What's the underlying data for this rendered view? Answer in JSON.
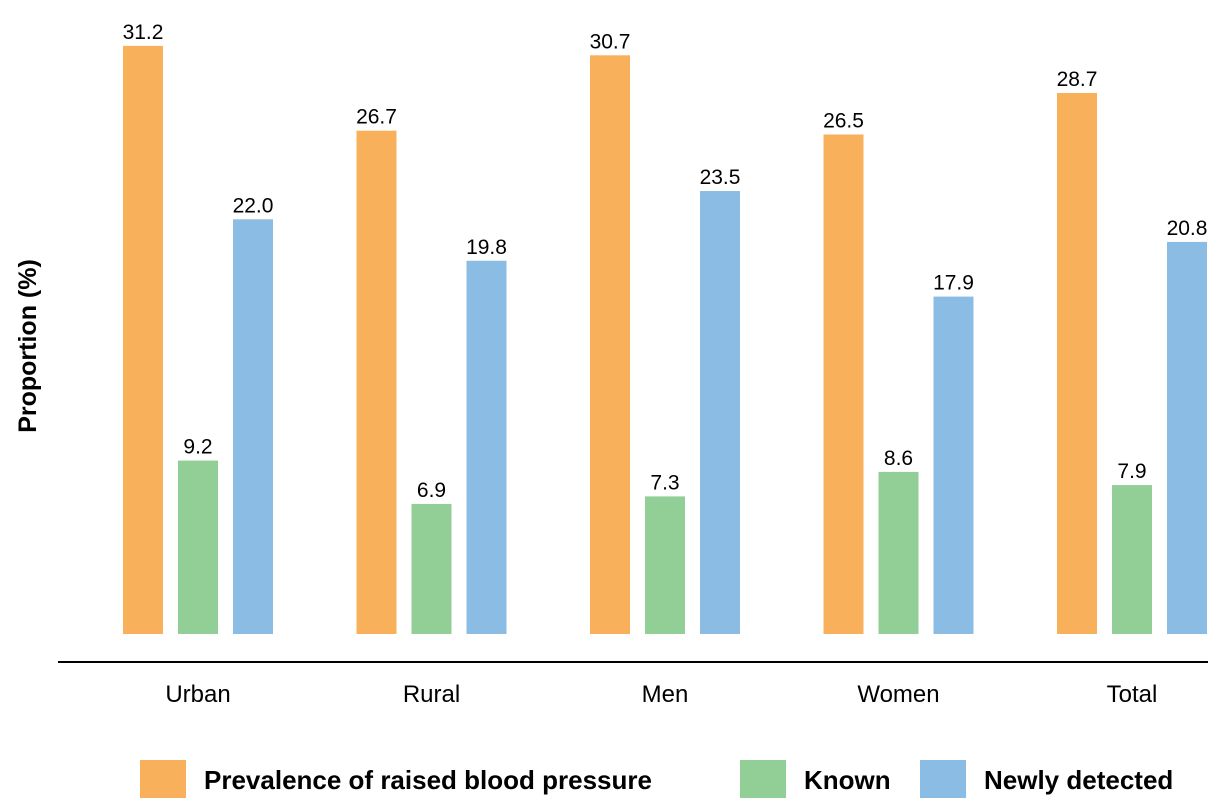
{
  "chart_data": {
    "type": "bar",
    "title": "",
    "xlabel": "",
    "ylabel": "Proportion (%)",
    "categories": [
      "Urban",
      "Rural",
      "Men",
      "Women",
      "Total"
    ],
    "series": [
      {
        "name": "Prevalence of raised blood pressure",
        "color": "#F9B05A",
        "values": [
          31.2,
          26.7,
          30.7,
          26.5,
          28.7
        ]
      },
      {
        "name": "Known",
        "color": "#92CF97",
        "values": [
          9.2,
          6.9,
          7.3,
          8.6,
          7.9
        ]
      },
      {
        "name": "Newly detected",
        "color": "#8BBDE4",
        "values": [
          22.0,
          19.8,
          23.5,
          17.9,
          20.8
        ]
      }
    ],
    "value_labels": [
      [
        "31.2",
        "26.7",
        "30.7",
        "26.5",
        "28.7"
      ],
      [
        "9.2",
        "6.9",
        "7.3",
        "8.6",
        "7.9"
      ],
      [
        "22.0",
        "19.8",
        "23.5",
        "17.9",
        "20.8"
      ]
    ],
    "ylim": [
      0,
      31.2
    ],
    "grid": false,
    "y_axis_visible": false,
    "legend_position": "bottom"
  }
}
